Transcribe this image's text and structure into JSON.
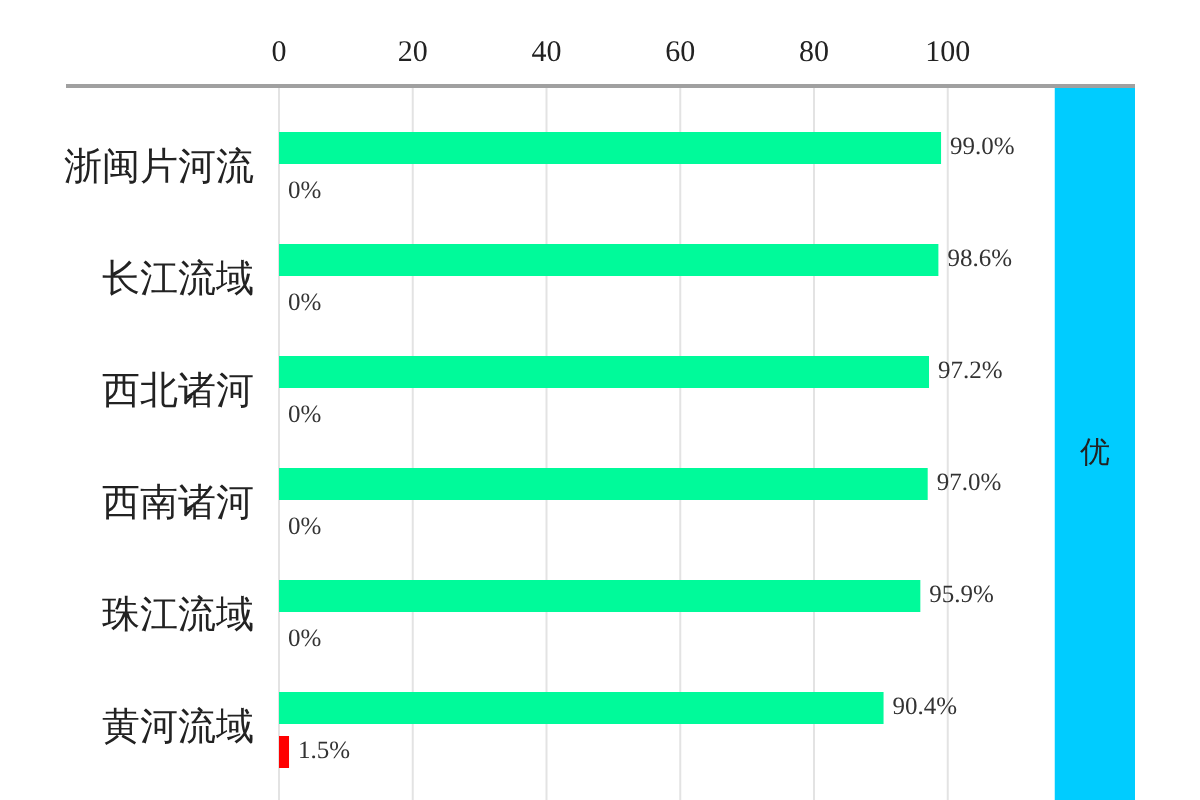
{
  "chart_data": {
    "type": "bar",
    "orientation": "horizontal",
    "categories": [
      "浙闽片河流",
      "长江流域",
      "西北诸河",
      "西南诸河",
      "珠江流域",
      "黄河流域"
    ],
    "series": [
      {
        "color": "#00fa9a",
        "values": [
          99.0,
          98.6,
          97.2,
          97.0,
          95.9,
          90.4
        ],
        "value_labels": [
          "99.0%",
          "98.6%",
          "97.2%",
          "97.0%",
          "95.9%",
          "90.4%"
        ]
      },
      {
        "color": "#ff0000",
        "values": [
          0,
          0,
          0,
          0,
          0,
          1.5
        ],
        "value_labels": [
          "0%",
          "0%",
          "0%",
          "0%",
          "0%",
          "1.5%"
        ]
      }
    ],
    "xlim": [
      0,
      128
    ],
    "xticks": [
      0,
      20,
      40,
      60,
      80,
      100
    ],
    "grid": "x",
    "bands": [
      {
        "axis": "x",
        "from": 116,
        "to": 128,
        "label": "优",
        "color": "#00ccff"
      }
    ]
  }
}
